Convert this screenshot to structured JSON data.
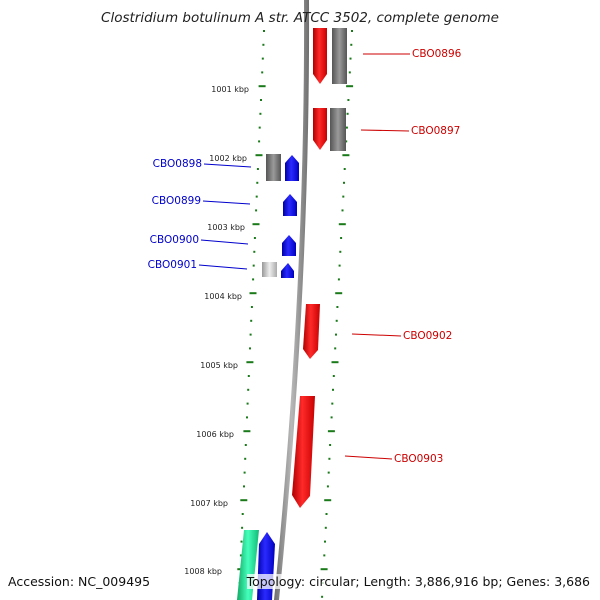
{
  "title": "Clostridium botulinum A str. ATCC 3502, complete genome",
  "footer": {
    "accession": "Accession: NC_009495",
    "topology": "Topology: circular; Length: 3,886,916 bp; Genes: 3,686"
  },
  "colors": {
    "axis_ticks": "#1a7a1a",
    "backbone": "#8c8c8c",
    "forward_gene": "#ee0000",
    "reverse_gene": "#0000ee",
    "other_feature": "#777777",
    "reverse_label": "#0000cc",
    "forward_label": "#cc0000",
    "teal_feature": "#22dd99"
  },
  "ruler_labels": [
    "1001 kbp",
    "1002 kbp",
    "1003 kbp",
    "1004 kbp",
    "1005 kbp",
    "1006 kbp",
    "1007 kbp",
    "1008 kbp"
  ],
  "genes": [
    {
      "id": "CBO0896",
      "strand": "forward"
    },
    {
      "id": "CBO0897",
      "strand": "forward"
    },
    {
      "id": "CBO0898",
      "strand": "reverse"
    },
    {
      "id": "CBO0899",
      "strand": "reverse"
    },
    {
      "id": "CBO0900",
      "strand": "reverse"
    },
    {
      "id": "CBO0901",
      "strand": "reverse"
    },
    {
      "id": "CBO0902",
      "strand": "forward"
    },
    {
      "id": "CBO0903",
      "strand": "forward"
    }
  ]
}
